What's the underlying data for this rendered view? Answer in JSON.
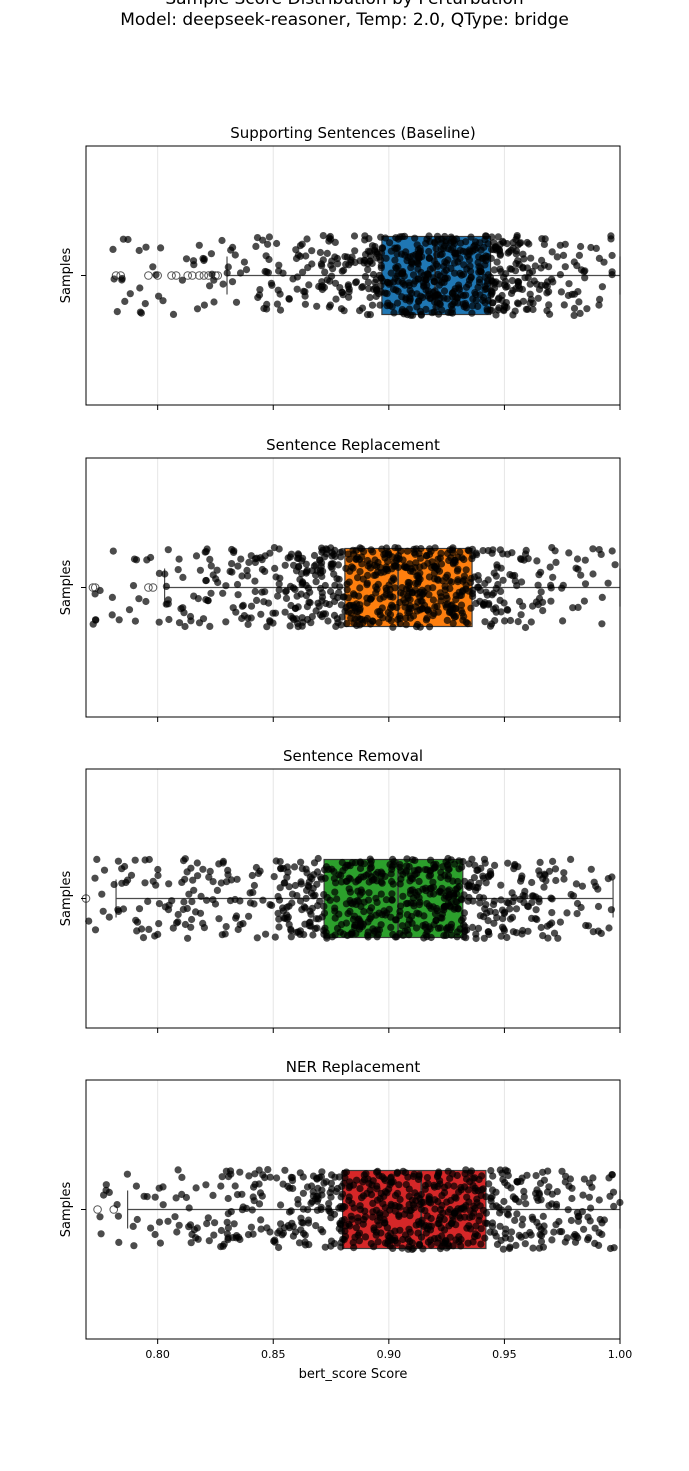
{
  "chart_data": {
    "type": "box-strip",
    "title": "Sample Score Distribution by Perturbation",
    "subtitle": "Model: deepseek-reasoner, Temp: 2.0, QType: bridge",
    "xlabel": "bert_score Score",
    "ylabel": "Samples",
    "xlim": [
      0.769,
      1.0
    ],
    "xticks": [
      "0.80",
      "0.85",
      "0.90",
      "0.95",
      "1.00"
    ],
    "xtick_values": [
      0.8,
      0.85,
      0.9,
      0.95,
      1.0
    ],
    "grid": "x",
    "panels": [
      {
        "title": "Supporting Sentences (Baseline)",
        "color": "#1f77b4",
        "q1": 0.897,
        "median": 0.92,
        "q3": 0.944,
        "whisker_low": 0.83,
        "whisker_high": 1.0,
        "point_min": 0.78,
        "point_max": 1.0,
        "n_points": 700,
        "outliers": [
          0.782,
          0.784,
          0.796,
          0.8,
          0.806,
          0.808,
          0.813,
          0.815,
          0.818,
          0.82,
          0.822,
          0.825,
          0.826
        ]
      },
      {
        "title": "Sentence Replacement",
        "color": "#ff7f0e",
        "q1": 0.881,
        "median": 0.904,
        "q3": 0.936,
        "whisker_low": 0.803,
        "whisker_high": 1.0,
        "point_min": 0.772,
        "point_max": 1.0,
        "n_points": 700,
        "outliers": [
          0.772,
          0.773,
          0.796,
          0.798
        ]
      },
      {
        "title": "Sentence Removal",
        "color": "#2ca02c",
        "q1": 0.872,
        "median": 0.904,
        "q3": 0.932,
        "whisker_low": 0.782,
        "whisker_high": 0.997,
        "point_min": 0.769,
        "point_max": 0.997,
        "n_points": 700,
        "outliers": [
          0.769
        ]
      },
      {
        "title": "NER Replacement",
        "color": "#d62728",
        "q1": 0.88,
        "median": 0.914,
        "q3": 0.942,
        "whisker_low": 0.787,
        "whisker_high": 1.0,
        "point_min": 0.774,
        "point_max": 1.0,
        "n_points": 700,
        "outliers": [
          0.774,
          0.781
        ]
      }
    ]
  }
}
